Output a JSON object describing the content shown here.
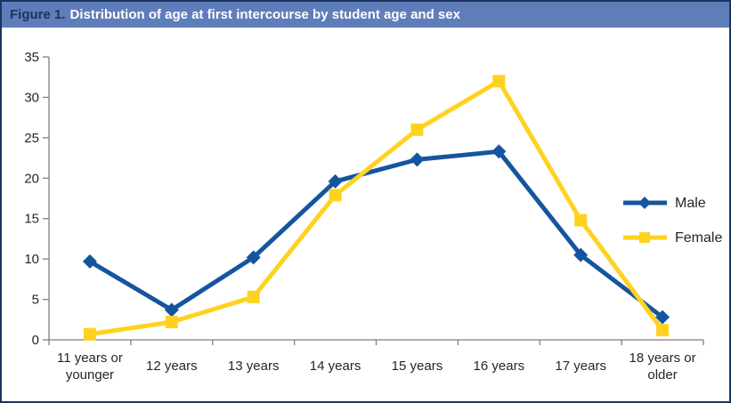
{
  "title_bar": {
    "figure_label": "Figure 1.",
    "title": "Distribution of age at first intercourse by student age and sex"
  },
  "colors": {
    "title_bar_bg": "#5F7DB9",
    "figure_label_text": "#17365D",
    "title_text": "#FFFFFF",
    "border": "#17365D",
    "axis": "#7F7F7F",
    "tick_text": "#262626",
    "male": "#15559F",
    "female": "#FFD21F"
  },
  "chart_data": {
    "type": "line",
    "title": "Distribution of age at first intercourse by student age and sex",
    "xlabel": "",
    "ylabel": "",
    "categories": [
      "11 years or\nyounger",
      "12 years",
      "13 years",
      "14 years",
      "15 years",
      "16 years",
      "17 years",
      "18 years or\nolder"
    ],
    "series": [
      {
        "name": "Male",
        "color": "#15559F",
        "marker": "diamond",
        "values": [
          9.7,
          3.7,
          10.2,
          19.6,
          22.3,
          23.3,
          10.5,
          2.8
        ]
      },
      {
        "name": "Female",
        "color": "#FFD21F",
        "marker": "square",
        "values": [
          0.7,
          2.2,
          5.3,
          17.9,
          26.0,
          32.0,
          14.8,
          1.2
        ]
      }
    ],
    "ylim": [
      0,
      35
    ],
    "yticks": [
      0,
      5,
      10,
      15,
      20,
      25,
      30,
      35
    ],
    "grid": false,
    "legend_position": "right-middle"
  }
}
